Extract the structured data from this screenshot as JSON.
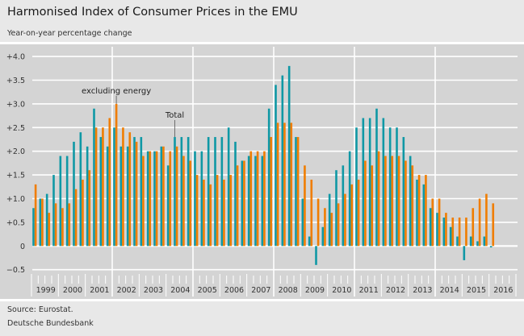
{
  "header": {
    "title": "Harmonised Index of Consumer Prices in the EMU",
    "subtitle": "Year-on-year percentage change"
  },
  "footer": {
    "source": "Source: Eurostat.",
    "organization": "Deutsche Bundesbank"
  },
  "chart_data": {
    "type": "bar",
    "title": "Harmonised Index of Consumer Prices in the EMU",
    "subtitle": "Year-on-year percentage change",
    "frequency": "quarterly",
    "years": [
      "1999",
      "2000",
      "2001",
      "2002",
      "2003",
      "2004",
      "2005",
      "2006",
      "2007",
      "2008",
      "2009",
      "2010",
      "2011",
      "2012",
      "2013",
      "2014",
      "2015",
      "2016"
    ],
    "ylim": [
      -0.5,
      4.0
    ],
    "yticks": [
      4.0,
      3.5,
      3.0,
      2.5,
      2.0,
      1.5,
      1.0,
      0.5,
      0,
      -0.5
    ],
    "ytick_labels": [
      "+4.0",
      "+3.5",
      "+3.0",
      "+2.5",
      "+2.0",
      "+1.5",
      "+1.0",
      "+0.5",
      "0",
      "−0.5"
    ],
    "grid": true,
    "series": [
      {
        "name": "Total",
        "color": "#0f98a5",
        "values": [
          0.8,
          1.0,
          1.1,
          1.5,
          1.9,
          1.9,
          2.2,
          2.4,
          2.1,
          2.9,
          2.3,
          2.1,
          2.5,
          2.1,
          2.1,
          2.3,
          2.3,
          2.0,
          2.0,
          2.1,
          1.7,
          2.3,
          2.3,
          2.3,
          2.0,
          2.0,
          2.3,
          2.3,
          2.3,
          2.5,
          2.2,
          1.8,
          1.9,
          1.9,
          1.9,
          2.9,
          3.4,
          3.6,
          3.8,
          2.3,
          1.0,
          0.2,
          -0.4,
          0.4,
          1.1,
          1.6,
          1.7,
          2.0,
          2.5,
          2.7,
          2.7,
          2.9,
          2.7,
          2.5,
          2.5,
          2.3,
          1.9,
          1.4,
          1.3,
          0.8,
          0.7,
          0.6,
          0.4,
          0.2,
          -0.3,
          0.2,
          0.1,
          0.2,
          -0.03
        ]
      },
      {
        "name": "excluding energy",
        "color": "#f07d00",
        "values": [
          1.3,
          1.0,
          0.7,
          0.9,
          0.8,
          0.9,
          1.2,
          1.4,
          1.6,
          2.5,
          2.5,
          2.7,
          3.0,
          2.5,
          2.4,
          2.2,
          1.9,
          2.0,
          2.0,
          2.1,
          2.0,
          2.1,
          1.9,
          1.8,
          1.5,
          1.4,
          1.3,
          1.5,
          1.4,
          1.5,
          1.7,
          1.8,
          2.0,
          2.0,
          2.0,
          2.3,
          2.6,
          2.6,
          2.6,
          2.3,
          1.7,
          1.4,
          1.0,
          0.8,
          0.7,
          0.9,
          1.1,
          1.3,
          1.4,
          1.8,
          1.7,
          2.0,
          1.9,
          1.9,
          1.9,
          1.8,
          1.7,
          1.5,
          1.5,
          1.0,
          1.0,
          0.7,
          0.6,
          0.6,
          0.6,
          0.8,
          1.0,
          1.1,
          0.9
        ]
      }
    ],
    "annotations": [
      {
        "text": "excluding energy",
        "series": "excluding energy",
        "period": "2002 Q1"
      },
      {
        "text": "Total",
        "series": "Total",
        "period": "2004 Q2"
      }
    ]
  }
}
